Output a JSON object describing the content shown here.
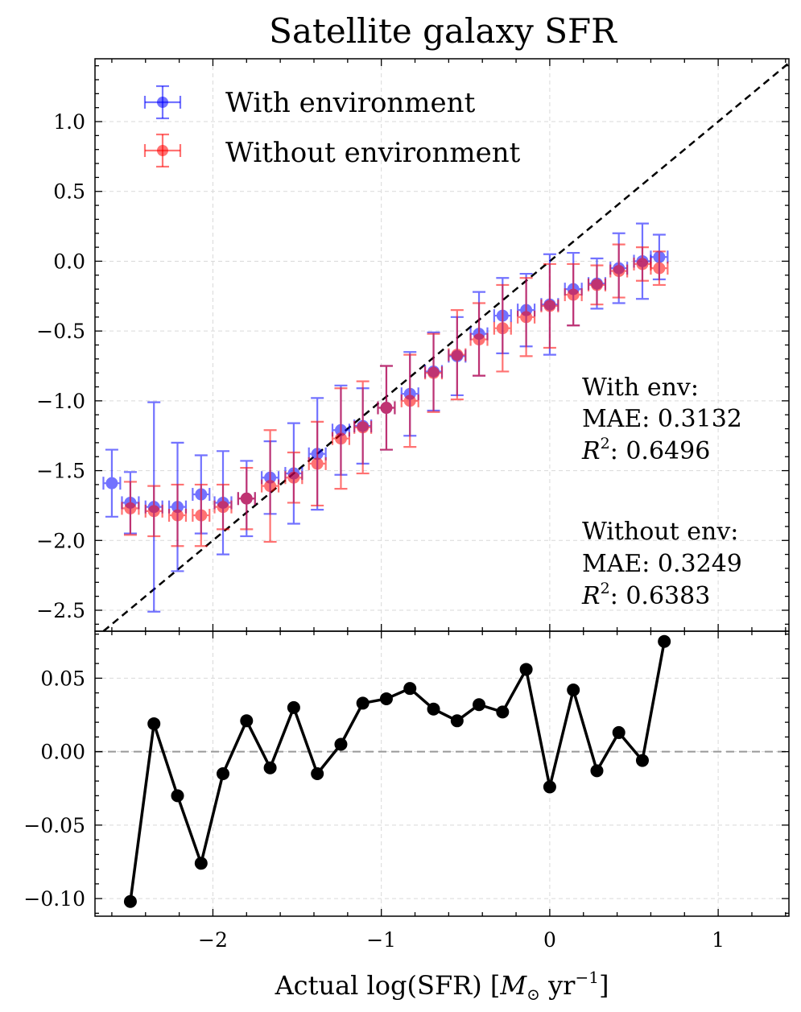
{
  "title": "Satellite galaxy SFR",
  "xlabel": {
    "main": "Actual log(SFR) [",
    "symbol": "M",
    "subscript": "⊙",
    "unit": " yr",
    "exponent": "−1",
    "close": "]"
  },
  "legend": {
    "position": "top-left",
    "items": [
      {
        "label": "With environment",
        "color": "#0000ff"
      },
      {
        "label": "Without environment",
        "color": "#ff0000"
      }
    ]
  },
  "stats": {
    "with": {
      "header": "With env:",
      "mae": "MAE: 0.3132",
      "r2_symbol": "R",
      "r2_sup": "2",
      "r2_value": ": 0.6496"
    },
    "without": {
      "header": "Without env:",
      "mae": "MAE: 0.3249",
      "r2_symbol": "R",
      "r2_sup": "2",
      "r2_value": ": 0.6383"
    }
  },
  "chart_data": [
    {
      "type": "scatter",
      "panel": "top",
      "xlim": [
        -2.7,
        1.42
      ],
      "ylim": [
        -2.65,
        1.45
      ],
      "yticks": [
        -2.5,
        -2.0,
        -1.5,
        -1.0,
        -0.5,
        0.0,
        0.5,
        1.0
      ],
      "ytick_labels": [
        "−2.5",
        "−2.0",
        "−1.5",
        "−1.0",
        "−0.5",
        "0.0",
        "0.5",
        "1.0"
      ],
      "xticks": [
        -2,
        -1,
        0,
        1
      ],
      "identity_line": true,
      "grid": true,
      "series": [
        {
          "name": "With environment",
          "color": "#0000ff",
          "x": [
            -2.6,
            -2.49,
            -2.35,
            -2.21,
            -2.07,
            -1.94,
            -1.8,
            -1.66,
            -1.52,
            -1.38,
            -1.24,
            -1.11,
            -0.97,
            -0.83,
            -0.69,
            -0.55,
            -0.42,
            -0.28,
            -0.14,
            0.0,
            0.14,
            0.28,
            0.41,
            0.55,
            0.65
          ],
          "y": [
            -1.59,
            -1.73,
            -1.76,
            -1.76,
            -1.67,
            -1.73,
            -1.7,
            -1.55,
            -1.52,
            -1.38,
            -1.21,
            -1.18,
            -1.05,
            -0.95,
            -0.79,
            -0.68,
            -0.52,
            -0.39,
            -0.35,
            -0.31,
            -0.2,
            -0.16,
            -0.05,
            0.0,
            0.03
          ],
          "yerr": [
            0.24,
            0.22,
            0.75,
            0.46,
            0.28,
            0.37,
            0.27,
            0.26,
            0.36,
            0.4,
            0.32,
            0.27,
            0.3,
            0.3,
            0.28,
            0.28,
            0.3,
            0.27,
            0.26,
            0.36,
            0.26,
            0.18,
            0.25,
            0.27,
            0.16
          ],
          "xerr": 0.05
        },
        {
          "name": "Without environment",
          "color": "#ff0000",
          "x": [
            -2.49,
            -2.35,
            -2.21,
            -2.07,
            -1.94,
            -1.8,
            -1.66,
            -1.52,
            -1.38,
            -1.24,
            -1.11,
            -0.97,
            -0.83,
            -0.69,
            -0.55,
            -0.42,
            -0.28,
            -0.14,
            0.0,
            0.14,
            0.28,
            0.41,
            0.55,
            0.65
          ],
          "y": [
            -1.77,
            -1.79,
            -1.82,
            -1.82,
            -1.76,
            -1.7,
            -1.61,
            -1.55,
            -1.45,
            -1.27,
            -1.19,
            -1.05,
            -1.0,
            -0.8,
            -0.67,
            -0.56,
            -0.48,
            -0.4,
            -0.32,
            -0.24,
            -0.17,
            -0.07,
            -0.02,
            -0.05
          ],
          "yerr": [
            0.19,
            0.18,
            0.22,
            0.22,
            0.16,
            0.22,
            0.4,
            0.18,
            0.3,
            0.36,
            0.33,
            0.3,
            0.33,
            0.28,
            0.32,
            0.26,
            0.31,
            0.28,
            0.3,
            0.22,
            0.14,
            0.19,
            0.12,
            0.12
          ],
          "xerr": 0.05
        }
      ]
    },
    {
      "type": "line",
      "panel": "bottom",
      "name": "difference",
      "color": "#000000",
      "xlim": [
        -2.7,
        1.42
      ],
      "ylim": [
        -0.112,
        0.082
      ],
      "yticks": [
        -0.1,
        -0.05,
        0.0,
        0.05
      ],
      "ytick_labels": [
        "−0.10",
        "−0.05",
        "0.00",
        "0.05"
      ],
      "xticks": [
        -2,
        -1,
        0,
        1
      ],
      "xtick_labels": [
        "−2",
        "−1",
        "0",
        "1"
      ],
      "zero_line": true,
      "grid": true,
      "x": [
        -2.49,
        -2.35,
        -2.21,
        -2.07,
        -1.94,
        -1.8,
        -1.66,
        -1.52,
        -1.38,
        -1.24,
        -1.11,
        -0.97,
        -0.83,
        -0.69,
        -0.55,
        -0.42,
        -0.28,
        -0.14,
        0.0,
        0.14,
        0.28,
        0.41,
        0.55,
        0.68
      ],
      "y": [
        -0.102,
        0.019,
        -0.03,
        -0.076,
        -0.015,
        0.021,
        -0.011,
        0.03,
        -0.015,
        0.005,
        0.033,
        0.036,
        0.043,
        0.029,
        0.021,
        0.032,
        0.027,
        0.056,
        -0.024,
        0.042,
        -0.013,
        0.013,
        -0.006,
        0.075
      ]
    }
  ]
}
